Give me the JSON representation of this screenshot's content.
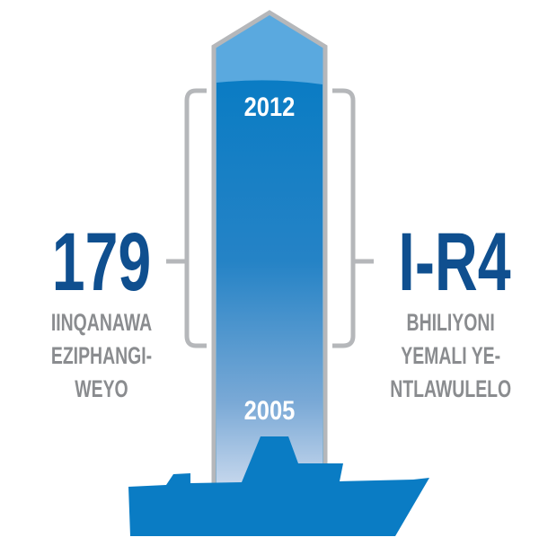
{
  "left_stat": {
    "value": "179",
    "label_lines": [
      "IINQANAWA",
      "EZIPHANGI-",
      "WEYO"
    ]
  },
  "right_stat": {
    "value": "I-R4",
    "label_lines": [
      "BHILIYONI",
      "YEMALI YE-",
      "NTLAWULELO"
    ]
  },
  "years": {
    "start": "2005",
    "end": "2012"
  },
  "colors": {
    "primary_blue": "#0f4f8f",
    "ship_blue": "#0a7cc4",
    "column_top": "#5aa9df",
    "bracket_gray": "#b5b7ba",
    "label_gray": "#8a8c8f"
  },
  "icons": {
    "ship": "ship-icon",
    "arrow": "arrow-column"
  }
}
